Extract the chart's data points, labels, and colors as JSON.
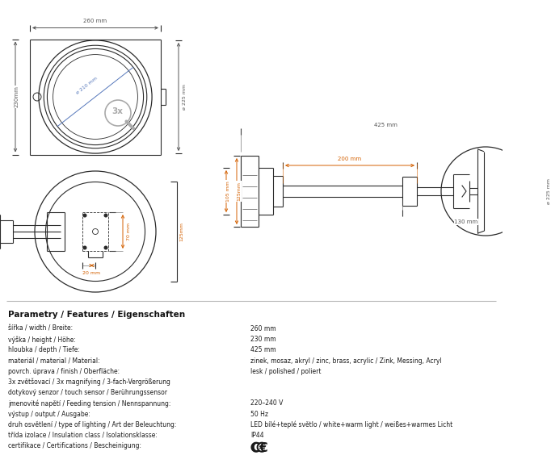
{
  "bg_color": "#ffffff",
  "line_color": "#2a2a2a",
  "dim_color": "#555555",
  "orange_color": "#d46000",
  "blue_color": "#5577bb",
  "gray_color": "#aaaaaa",
  "title_section": "Parametry / Features / Eigenschaften",
  "params": [
    [
      "šířka / width / Breite:",
      "260 mm"
    ],
    [
      "výška / height / Höhe:",
      "230 mm"
    ],
    [
      "hloubka / depth / Tiefe:",
      "425 mm"
    ],
    [
      "materiál / material / Material:",
      "zinek, mosaz, akryl / zinc, brass, acrylic / Zink, Messing, Acryl"
    ],
    [
      "povrch. úprava / finish / Oberfläche:",
      "lesk / polished / poliert"
    ],
    [
      "3x zvětšovací / 3x magnifying / 3-fach-Vergrößerung",
      ""
    ],
    [
      "dotykový senzor / touch sensor / Berührungssensor",
      ""
    ],
    [
      "jmenovité napětí / Feeding tension / Nennspannung:",
      "220–240 V"
    ],
    [
      "výstup / output / Ausgabe:",
      "50 Hz"
    ],
    [
      "druh osvětlení / type of lighting / Art der Beleuchtung:",
      "LED bílé+teplé světlo / white+warm light / weißes+warmes Licht"
    ],
    [
      "třída izolace / Insulation class / Isolationsklasse:",
      "IP44"
    ],
    [
      "certifikace / Certifications / Bescheinigung:",
      "CE_SYMBOL"
    ]
  ]
}
